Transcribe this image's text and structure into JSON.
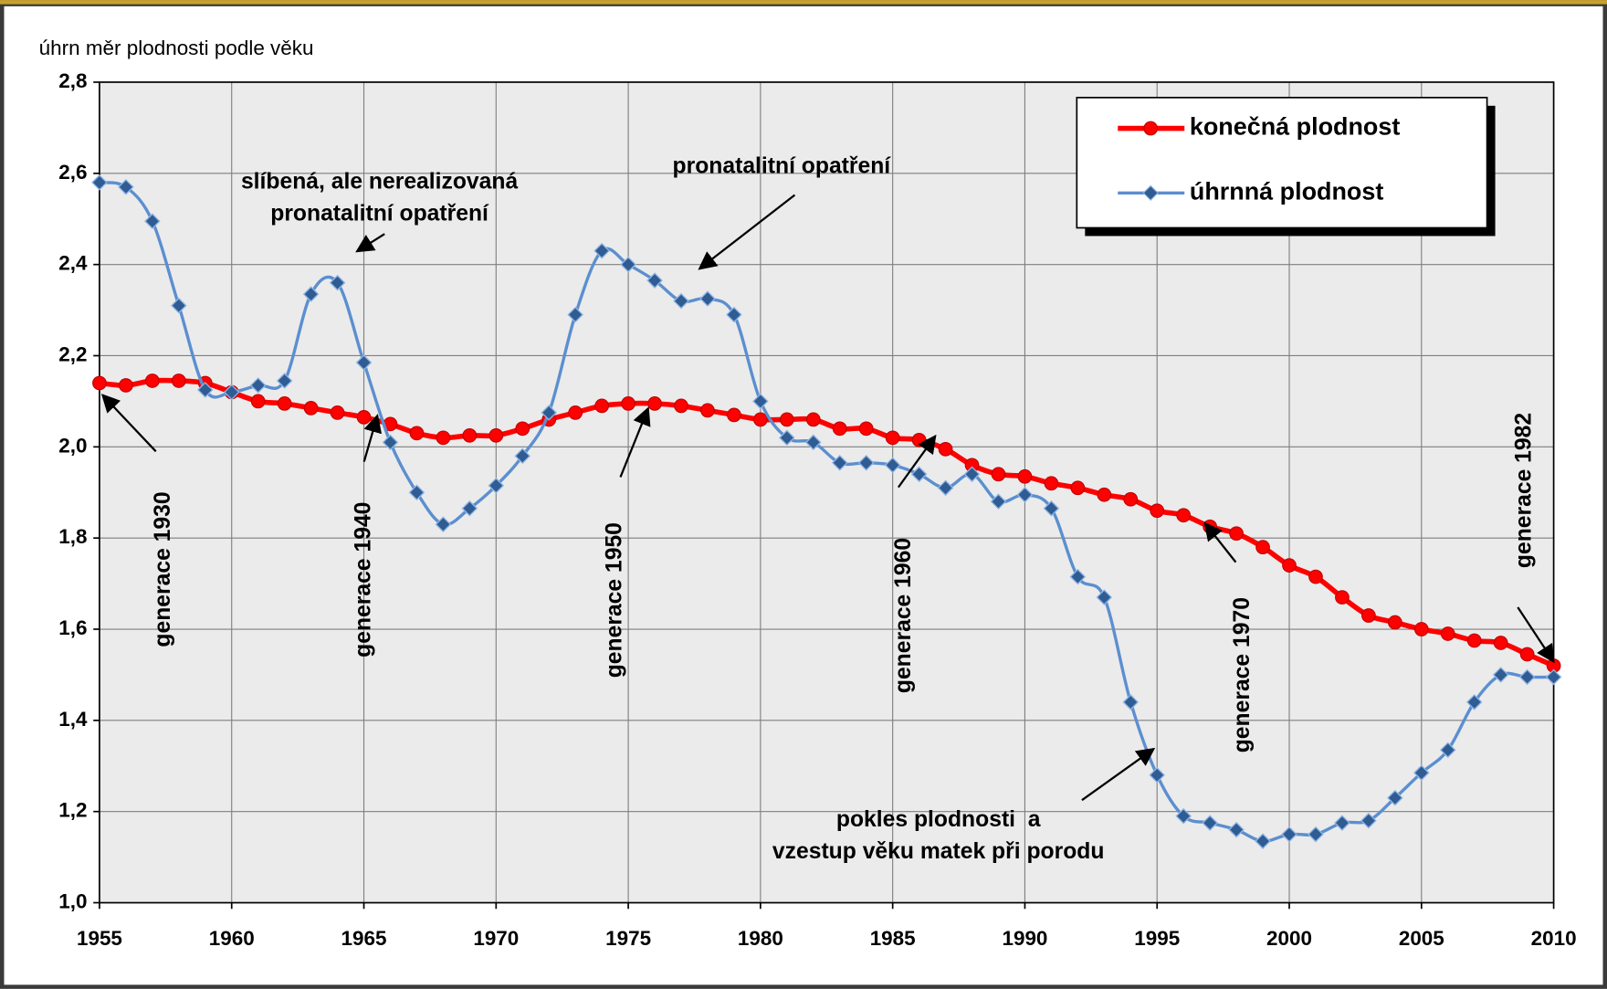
{
  "chart_data": {
    "type": "line",
    "y_label": "úhrn měr plodnosti podle věku",
    "x": [
      1955,
      1956,
      1957,
      1958,
      1959,
      1960,
      1961,
      1962,
      1963,
      1964,
      1965,
      1966,
      1967,
      1968,
      1969,
      1970,
      1971,
      1972,
      1973,
      1974,
      1975,
      1976,
      1977,
      1978,
      1979,
      1980,
      1981,
      1982,
      1983,
      1984,
      1985,
      1986,
      1987,
      1988,
      1989,
      1990,
      1991,
      1992,
      1993,
      1994,
      1995,
      1996,
      1997,
      1998,
      1999,
      2000,
      2001,
      2002,
      2003,
      2004,
      2005,
      2006,
      2007,
      2008,
      2009,
      2010
    ],
    "series": [
      {
        "name": "konečná plodnost",
        "color": "#ff0000",
        "marker": "circle",
        "values": [
          2.14,
          2.135,
          2.145,
          2.145,
          2.14,
          2.12,
          2.1,
          2.095,
          2.085,
          2.075,
          2.065,
          2.05,
          2.03,
          2.02,
          2.025,
          2.025,
          2.04,
          2.06,
          2.075,
          2.09,
          2.095,
          2.095,
          2.09,
          2.08,
          2.07,
          2.06,
          2.06,
          2.06,
          2.04,
          2.04,
          2.02,
          2.015,
          1.995,
          1.96,
          1.94,
          1.935,
          1.92,
          1.91,
          1.895,
          1.885,
          1.86,
          1.85,
          1.825,
          1.81,
          1.78,
          1.74,
          1.715,
          1.67,
          1.63,
          1.615,
          1.6,
          1.59,
          1.575,
          1.57,
          1.545,
          1.52
        ]
      },
      {
        "name": "úhrnná plodnost",
        "color": "#5b8fd0",
        "marker": "diamond",
        "values": [
          2.58,
          2.57,
          2.495,
          2.31,
          2.125,
          2.12,
          2.135,
          2.145,
          2.335,
          2.36,
          2.185,
          2.01,
          1.9,
          1.83,
          1.865,
          1.915,
          1.98,
          2.075,
          2.29,
          2.43,
          2.4,
          2.365,
          2.32,
          2.325,
          2.29,
          2.1,
          2.02,
          2.01,
          1.965,
          1.965,
          1.96,
          1.94,
          1.91,
          1.94,
          1.88,
          1.895,
          1.865,
          1.715,
          1.67,
          1.44,
          1.28,
          1.19,
          1.175,
          1.16,
          1.135,
          1.15,
          1.15,
          1.175,
          1.18,
          1.23,
          1.285,
          1.335,
          1.44,
          1.5,
          1.495,
          1.495
        ]
      }
    ],
    "xlim": [
      1955,
      2010
    ],
    "xticks": [
      1955,
      1960,
      1965,
      1970,
      1975,
      1980,
      1985,
      1990,
      1995,
      2000,
      2005,
      2010
    ],
    "ylim": [
      1.0,
      2.8
    ],
    "yticks": [
      {
        "value": 1.0,
        "label": "1,0"
      },
      {
        "value": 1.2,
        "label": "1,2"
      },
      {
        "value": 1.4,
        "label": "1,4"
      },
      {
        "value": 1.6,
        "label": "1,6"
      },
      {
        "value": 1.8,
        "label": "1,8"
      },
      {
        "value": 2.0,
        "label": "2,0"
      },
      {
        "value": 2.2,
        "label": "2,2"
      },
      {
        "value": 2.4,
        "label": "2,4"
      },
      {
        "value": 2.6,
        "label": "2,6"
      },
      {
        "value": 2.8,
        "label": "2,8"
      }
    ],
    "grid": true,
    "legend": "top-right",
    "annotations": [
      {
        "lines": [
          "generace 1930"
        ],
        "vertical": true
      },
      {
        "lines": [
          "generace 1940"
        ],
        "vertical": true
      },
      {
        "lines": [
          "generace 1950"
        ],
        "vertical": true
      },
      {
        "lines": [
          "generace 1960"
        ],
        "vertical": true
      },
      {
        "lines": [
          "generace 1970"
        ],
        "vertical": true
      },
      {
        "lines": [
          "generace 1982"
        ],
        "vertical": true
      },
      {
        "lines": [
          "slíbená, ale nerealizovaná",
          "pronatalitní opatření"
        ],
        "vertical": false
      },
      {
        "lines": [
          "pronatalitní opatření"
        ],
        "vertical": false
      },
      {
        "lines": [
          "pokles plodnosti  a",
          "vzestup věku matek při porodu"
        ],
        "vertical": false
      }
    ]
  }
}
